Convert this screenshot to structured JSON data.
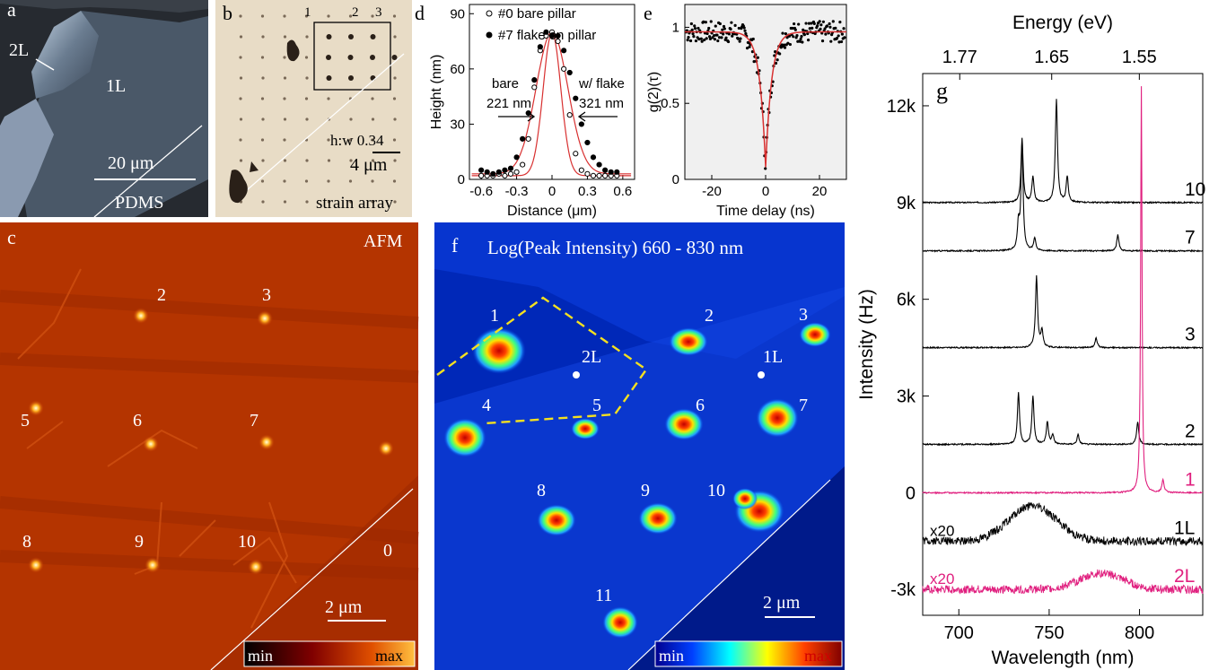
{
  "figure": {
    "panels": {
      "a": {
        "letter": "a",
        "label_2L": "2L",
        "label_1L": "1L",
        "scale": "20 μm",
        "substrate": "PDMS"
      },
      "b": {
        "letter": "b",
        "n1": "1",
        "n2": "2",
        "n3": "3",
        "ratio": "h:w 0.34",
        "scale": "4 μm",
        "caption": "strain array"
      },
      "c": {
        "letter": "c",
        "title": "AFM",
        "scale": "2 μm",
        "cbar_min": "min",
        "cbar_max": "max",
        "pillars": [
          {
            "label": "2"
          },
          {
            "label": "3"
          },
          {
            "label": "5"
          },
          {
            "label": "6"
          },
          {
            "label": "7"
          },
          {
            "label": "8"
          },
          {
            "label": "9"
          },
          {
            "label": "10"
          },
          {
            "label": "0"
          }
        ]
      },
      "d": {
        "letter": "d",
        "legend": [
          "#0 bare pillar",
          "#7 flake on pillar"
        ],
        "bare_label": "bare",
        "bare_width": "221 nm",
        "flake_label": "w/ flake",
        "flake_width": "321 nm"
      },
      "e": {
        "letter": "e"
      },
      "f": {
        "letter": "f",
        "title": "Log(Peak Intensity) 660 - 830 nm",
        "scale": "2 μm",
        "cbar_min": "min",
        "cbar_max": "max",
        "label_2L": "2L",
        "label_1L": "1L",
        "spots": [
          {
            "label": "1"
          },
          {
            "label": "2"
          },
          {
            "label": "3"
          },
          {
            "label": "4"
          },
          {
            "label": "5"
          },
          {
            "label": "6"
          },
          {
            "label": "7"
          },
          {
            "label": "8"
          },
          {
            "label": "9"
          },
          {
            "label": "10"
          },
          {
            "label": "11"
          }
        ]
      },
      "g": {
        "letter": "g",
        "trace_labels": [
          "10",
          "7",
          "3",
          "2",
          "1",
          "1L",
          "2L"
        ],
        "scale_labels": [
          "x20",
          "x20"
        ]
      }
    },
    "colors": {
      "magenta": "#e0207f",
      "fit_red": "#d83030",
      "afm_bg": "#b83000"
    }
  },
  "chart_data": [
    {
      "type": "scatter",
      "panel": "d",
      "xlabel": "Distance (μm)",
      "ylabel": "Height (nm)",
      "xlim": [
        -0.7,
        0.7
      ],
      "ylim": [
        0,
        95
      ],
      "xticks": [
        "-0.6",
        "-0.3",
        "0",
        "0.3",
        "0.6"
      ],
      "yticks": [
        "0",
        "30",
        "60",
        "90"
      ],
      "series": [
        {
          "name": "#0 bare pillar",
          "marker": "open-circle",
          "x": [
            -0.6,
            -0.55,
            -0.5,
            -0.45,
            -0.4,
            -0.35,
            -0.3,
            -0.25,
            -0.2,
            -0.15,
            -0.1,
            -0.05,
            0,
            0.05,
            0.1,
            0.15,
            0.2,
            0.25,
            0.3,
            0.35,
            0.4,
            0.45,
            0.5,
            0.55
          ],
          "y": [
            2,
            2,
            2,
            3,
            2,
            3,
            4,
            8,
            22,
            50,
            70,
            78,
            80,
            75,
            60,
            35,
            14,
            5,
            3,
            2,
            2,
            2,
            2,
            2
          ]
        },
        {
          "name": "#7 flake on pillar",
          "marker": "filled-circle",
          "x": [
            -0.6,
            -0.55,
            -0.5,
            -0.45,
            -0.4,
            -0.35,
            -0.3,
            -0.25,
            -0.2,
            -0.15,
            -0.1,
            -0.05,
            0,
            0.05,
            0.1,
            0.15,
            0.2,
            0.25,
            0.3,
            0.35,
            0.4,
            0.45,
            0.5,
            0.55
          ],
          "y": [
            5,
            4,
            3,
            4,
            5,
            6,
            12,
            22,
            36,
            54,
            72,
            80,
            78,
            78,
            70,
            58,
            44,
            30,
            20,
            12,
            8,
            5,
            4,
            4
          ]
        }
      ]
    },
    {
      "type": "scatter",
      "panel": "e",
      "xlabel": "Time delay (ns)",
      "ylabel": "g(2)(τ)",
      "xlim": [
        -30,
        30
      ],
      "ylim": [
        0,
        1.15
      ],
      "xticks": [
        "-20",
        "0",
        "20"
      ],
      "yticks": [
        "0",
        "0.5",
        "1"
      ],
      "fit": {
        "model": "antibunching",
        "baseline": 0.97,
        "g0": 0.08,
        "tau_ns": 2.2
      }
    },
    {
      "type": "line",
      "panel": "g",
      "xlabel": "Wavelength (nm)",
      "ylabel": "Intensity (Hz)",
      "top_xlabel": "Energy (eV)",
      "xlim": [
        680,
        835
      ],
      "ylim": [
        -3800,
        13000
      ],
      "xticks": [
        "700",
        "750",
        "800"
      ],
      "yticks": [
        "-3k",
        "0",
        "3k",
        "6k",
        "9k",
        "12k"
      ],
      "top_xticks": [
        "1.77",
        "1.65",
        "1.55"
      ],
      "series": [
        {
          "name": "10",
          "offset": 9000,
          "peaks": [
            [
              735,
              2000
            ],
            [
              741,
              800
            ],
            [
              754,
              3200
            ],
            [
              760,
              800
            ]
          ]
        },
        {
          "name": "7",
          "offset": 7500,
          "peaks": [
            [
              733,
              800
            ],
            [
              735,
              3300
            ],
            [
              742,
              400
            ],
            [
              788,
              500
            ]
          ]
        },
        {
          "name": "3",
          "offset": 4500,
          "peaks": [
            [
              743,
              2200
            ],
            [
              746,
              500
            ],
            [
              776,
              300
            ]
          ]
        },
        {
          "name": "2",
          "offset": 1500,
          "peaks": [
            [
              733,
              1600
            ],
            [
              741,
              1500
            ],
            [
              749,
              700
            ],
            [
              752,
              300
            ],
            [
              766,
              300
            ],
            [
              799,
              700
            ]
          ]
        },
        {
          "name": "1",
          "offset": 0,
          "peaks": [
            [
              801,
              12600
            ],
            [
              813,
              400
            ]
          ]
        },
        {
          "name": "1L",
          "offset": -1500,
          "broad": [
            741,
            13,
            1100
          ]
        },
        {
          "name": "2L",
          "offset": -3000,
          "broad": [
            779,
            12,
            500
          ]
        }
      ]
    }
  ]
}
